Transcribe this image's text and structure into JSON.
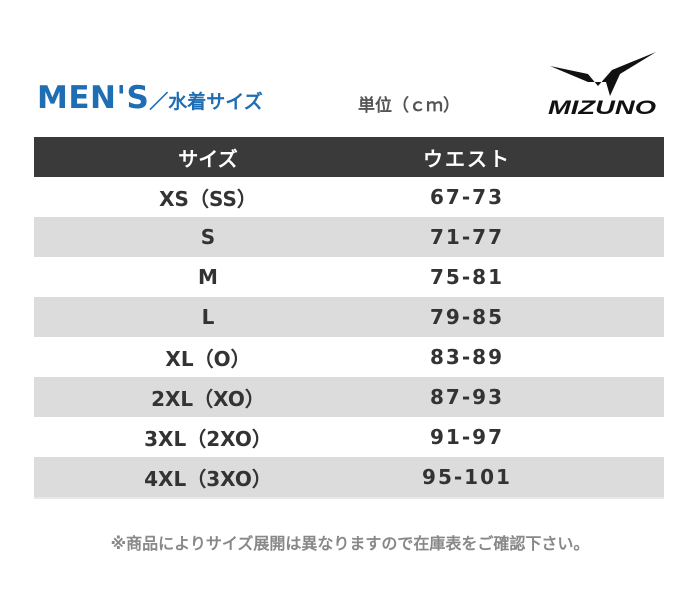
{
  "header": {
    "title_en": "MEN'S",
    "title_jp": "／水着サイズ",
    "unit": "単位（ｃｍ）",
    "brand": "MIZUNO"
  },
  "table": {
    "columns": [
      "サイズ",
      "ウエスト"
    ],
    "rows": [
      {
        "size": "XS（SS）",
        "waist": "67-73"
      },
      {
        "size": "S",
        "waist": "71-77"
      },
      {
        "size": "M",
        "waist": "75-81"
      },
      {
        "size": "L",
        "waist": "79-85"
      },
      {
        "size": "XL（O）",
        "waist": "83-89"
      },
      {
        "size": "2XL（XO）",
        "waist": "87-93"
      },
      {
        "size": "3XL（2XO）",
        "waist": "91-97"
      },
      {
        "size": "4XL（3XO）",
        "waist": "95-101"
      }
    ]
  },
  "note": "※商品によりサイズ展開は異なりますので在庫表をご確認下さい。",
  "colors": {
    "title": "#1f6db3",
    "header_bg": "#3a3a3a",
    "alt_row": "#dcdcdc"
  }
}
